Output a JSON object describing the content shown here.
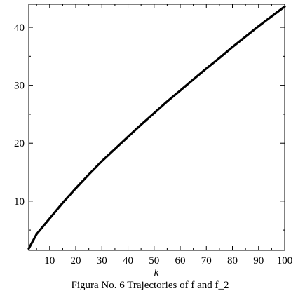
{
  "chart_data": {
    "type": "line",
    "title": "",
    "xlabel": "k",
    "ylabel": "",
    "xlim": [
      2,
      100
    ],
    "ylim": [
      1.5,
      44
    ],
    "xticks": [
      10,
      20,
      30,
      40,
      50,
      60,
      70,
      80,
      90,
      100
    ],
    "yticks": [
      10,
      20,
      30,
      40
    ],
    "grid": false,
    "legend": "none",
    "caption": "Figura No. 6 Trajectories of f and f_2",
    "series": [
      {
        "color": "#000000",
        "x": [
          2,
          5,
          10,
          15,
          20,
          25,
          30,
          35,
          40,
          45,
          50,
          55,
          60,
          65,
          70,
          75,
          80,
          85,
          90,
          95,
          100
        ],
        "y": [
          1.8,
          4.3,
          7.0,
          9.7,
          12.2,
          14.6,
          16.9,
          19.0,
          21.1,
          23.2,
          25.2,
          27.2,
          29.1,
          31.0,
          32.9,
          34.7,
          36.6,
          38.4,
          40.2,
          41.9,
          43.6
        ]
      }
    ]
  }
}
